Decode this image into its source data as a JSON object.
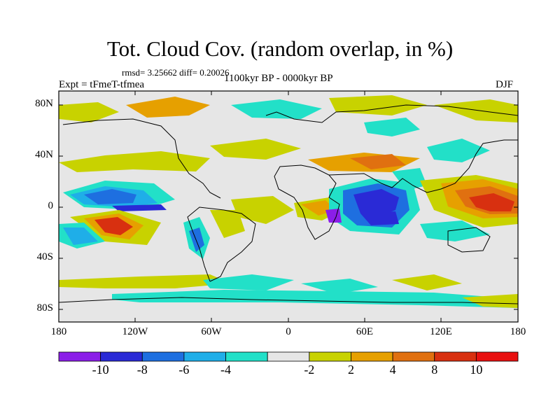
{
  "title": "Tot. Cloud Cov. (random overlap, in %)",
  "stats": "rmsd= 3.25662 diff= 0.20026",
  "experiment": "Expt = tFmeT-tfmea",
  "period": "1100kyr BP - 0000kyr BP",
  "season": "DJF",
  "map": {
    "lat_ticks": [
      "80N",
      "40N",
      "0",
      "40S",
      "80S"
    ],
    "lon_ticks": [
      "180",
      "120W",
      "60W",
      "0",
      "60E",
      "120E",
      "180"
    ]
  },
  "colorbar": {
    "colors": [
      "#8b1ee8",
      "#2a2ad6",
      "#1e6fe0",
      "#1faee8",
      "#22e0c8",
      "#e6e6e6",
      "#c8d200",
      "#e6a000",
      "#e07010",
      "#d83010",
      "#e81010"
    ],
    "labels": [
      "-10",
      "-8",
      "-6",
      "-4",
      "-2",
      "2",
      "4",
      "8",
      "10"
    ]
  }
}
